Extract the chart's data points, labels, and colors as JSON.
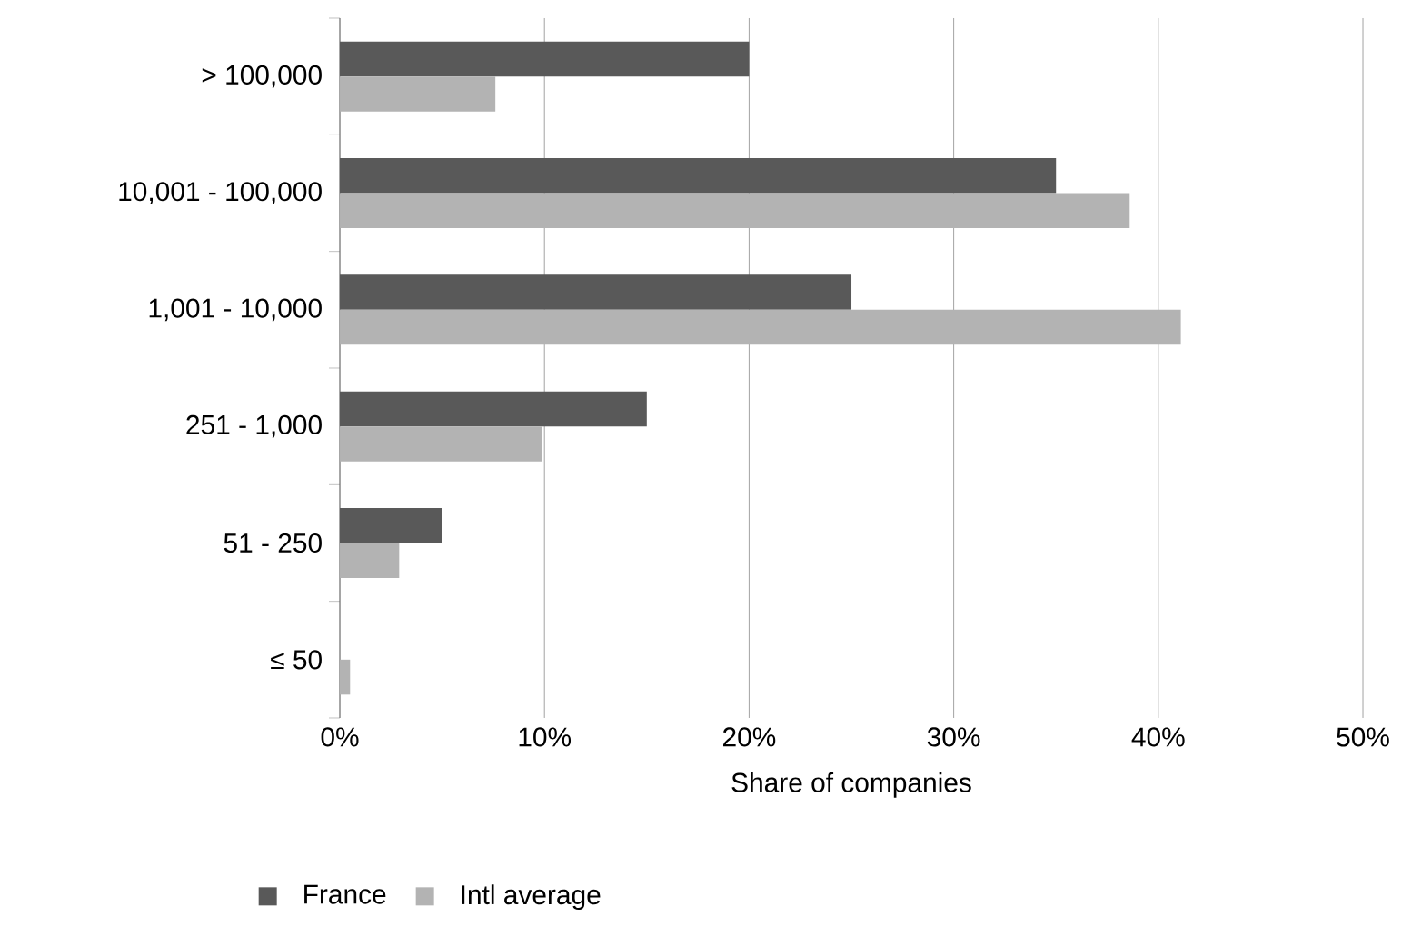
{
  "chart_data": {
    "type": "bar",
    "orientation": "horizontal",
    "xlabel": "Share of companies",
    "categories": [
      "> 100,000",
      "10,001 - 100,000",
      "1,001 - 10,000",
      "251 - 1,000",
      "51 - 250",
      "≤ 50"
    ],
    "series": [
      {
        "name": "France",
        "color": "#595959",
        "values": [
          20,
          35,
          25,
          15,
          5,
          0
        ]
      },
      {
        "name": "Intl average",
        "color": "#b3b3b3",
        "values": [
          7.6,
          38.6,
          41.1,
          9.9,
          2.9,
          0.5
        ]
      }
    ],
    "xlim": [
      0,
      50
    ],
    "xticks": [
      {
        "value": 0,
        "label": "0%"
      },
      {
        "value": 10,
        "label": "10%"
      },
      {
        "value": 20,
        "label": "20%"
      },
      {
        "value": 30,
        "label": "30%"
      },
      {
        "value": 40,
        "label": "40%"
      },
      {
        "value": 50,
        "label": "50%"
      }
    ],
    "grid": "x",
    "legend": "bottom"
  }
}
